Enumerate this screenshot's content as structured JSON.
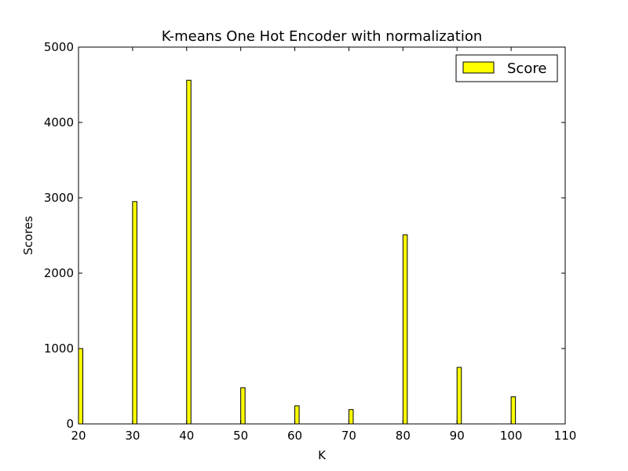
{
  "chart_data": {
    "type": "bar",
    "title": "K-means One Hot Encoder with normalization",
    "xlabel": "K",
    "ylabel": "Scores",
    "x": [
      20,
      30,
      40,
      50,
      60,
      70,
      80,
      90,
      100
    ],
    "series": [
      {
        "name": "Score",
        "values": [
          1000,
          2950,
          4560,
          480,
          240,
          190,
          2510,
          750,
          360
        ],
        "color": "#ffff00"
      }
    ],
    "xlim": [
      20,
      110
    ],
    "ylim": [
      0,
      5000
    ],
    "xticks": [
      "20",
      "30",
      "40",
      "50",
      "60",
      "70",
      "80",
      "90",
      "100",
      "110"
    ],
    "yticks": [
      "0",
      "1000",
      "2000",
      "3000",
      "4000",
      "5000"
    ],
    "legend_position": "top-right",
    "grid": false,
    "bar_width_units": 0.8
  }
}
